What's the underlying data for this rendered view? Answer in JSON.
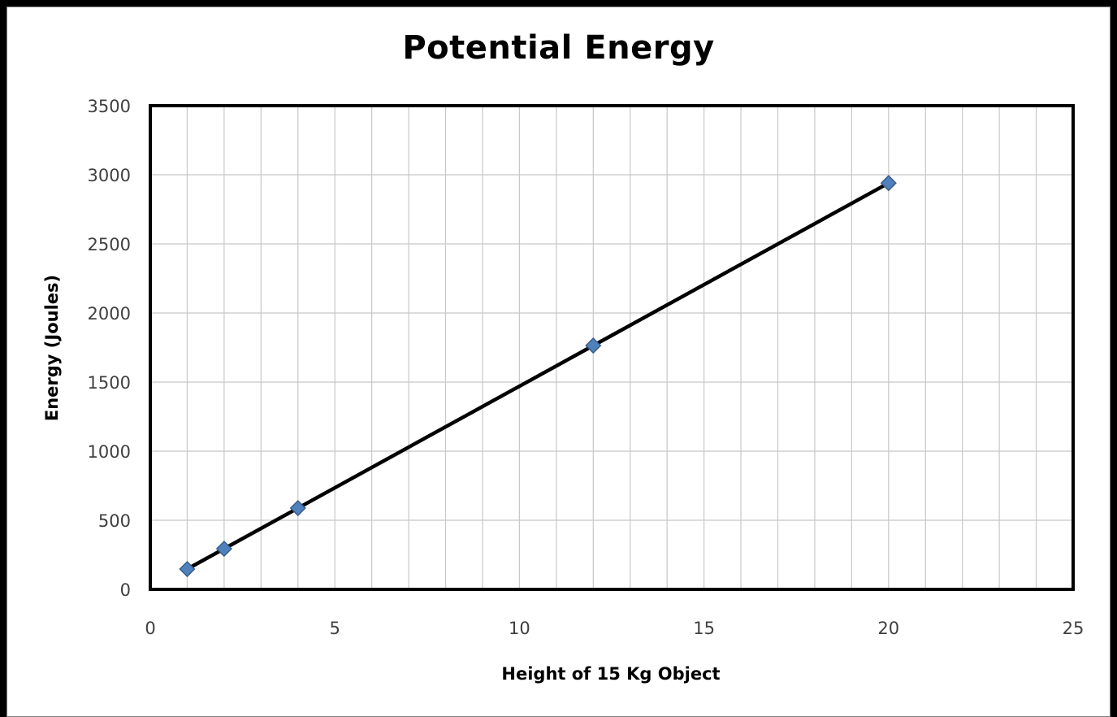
{
  "chart_data": {
    "type": "scatter",
    "title": "Potential Energy",
    "xlabel": "Height of 15 Kg Object",
    "ylabel": "Energy (Joules)",
    "xlim": [
      0,
      25
    ],
    "ylim": [
      0,
      3500
    ],
    "x_ticks": [
      0,
      5,
      10,
      15,
      20,
      25
    ],
    "y_ticks": [
      0,
      500,
      1000,
      1500,
      2000,
      2500,
      3000,
      3500
    ],
    "x_minor_step": 1,
    "grid": true,
    "legend": "none",
    "series": [
      {
        "x": [
          1,
          2,
          4,
          12,
          20
        ],
        "y": [
          147,
          294,
          588,
          1764,
          2940
        ],
        "marker": "diamond",
        "marker_color": "#4f81bd",
        "line": true,
        "line_color": "#000000"
      }
    ]
  }
}
